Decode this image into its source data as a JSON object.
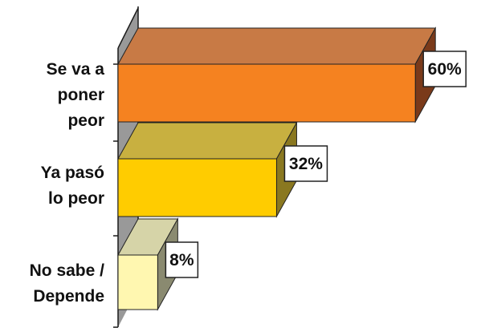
{
  "chart_data": {
    "type": "bar",
    "orientation": "horizontal",
    "three_d": true,
    "categories": [
      [
        "Se va a",
        "poner",
        "peor"
      ],
      [
        "Ya pasó",
        "lo peor"
      ],
      [
        "No sabe /",
        "Depende"
      ]
    ],
    "values": [
      60,
      32,
      8
    ],
    "value_labels": [
      "60%",
      "32%",
      "8%"
    ],
    "xlim": [
      0,
      70
    ],
    "grid": false,
    "legend": "none",
    "colors": [
      {
        "front": "#f58220",
        "top": "#c87a45",
        "side": "#7a3a1a"
      },
      {
        "front": "#ffcc00",
        "top": "#c8b040",
        "side": "#8a7820"
      },
      {
        "front": "#fff7b0",
        "top": "#d6d4a8",
        "side": "#8a8a70"
      }
    ],
    "axis_color": "#1a1a1a",
    "wall_color": "#999999"
  }
}
